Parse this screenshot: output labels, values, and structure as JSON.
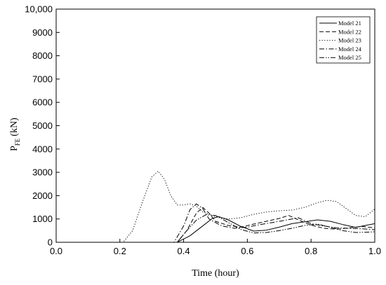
{
  "chart_data": {
    "type": "line",
    "title": "",
    "xlabel": "Time (hour)",
    "ylabel_main": "P",
    "ylabel_sub": "FE",
    "ylabel_unit": "(kN)",
    "xlim": [
      0.0,
      1.0
    ],
    "ylim": [
      0,
      10000
    ],
    "xticks": [
      0.0,
      0.2,
      0.4,
      0.6,
      0.8,
      1.0
    ],
    "xtick_labels": [
      "0.0",
      "0.2",
      "0.4",
      "0.6",
      "0.8",
      "1.0"
    ],
    "yticks": [
      0,
      1000,
      2000,
      3000,
      4000,
      5000,
      6000,
      7000,
      8000,
      9000,
      10000
    ],
    "ytick_labels": [
      "0",
      "1000",
      "2000",
      "3000",
      "4000",
      "5000",
      "6000",
      "7000",
      "8000",
      "9000",
      "10,000"
    ],
    "grid": false,
    "legend_position": "top-right",
    "series": [
      {
        "name": "Model 21",
        "dash": "solid",
        "x": [
          0.0,
          0.38,
          0.42,
          0.46,
          0.49,
          0.51,
          0.54,
          0.58,
          0.62,
          0.66,
          0.7,
          0.74,
          0.78,
          0.82,
          0.86,
          0.9,
          0.94,
          0.97,
          1.0
        ],
        "y": [
          0,
          0,
          280,
          700,
          1020,
          1100,
          960,
          680,
          480,
          520,
          650,
          800,
          880,
          960,
          900,
          760,
          640,
          720,
          800
        ]
      },
      {
        "name": "Model 22",
        "dash": "dashed",
        "x": [
          0.0,
          0.38,
          0.41,
          0.44,
          0.46,
          0.48,
          0.5,
          0.54,
          0.58,
          0.62,
          0.66,
          0.7,
          0.73,
          0.76,
          0.8,
          0.84,
          0.88,
          0.92,
          0.96,
          1.0
        ],
        "y": [
          0,
          0,
          500,
          1250,
          1500,
          1250,
          900,
          720,
          650,
          780,
          900,
          1020,
          1150,
          960,
          740,
          600,
          560,
          620,
          680,
          620
        ]
      },
      {
        "name": "Model 23",
        "dash": "dotted",
        "x": [
          0.0,
          0.21,
          0.24,
          0.27,
          0.3,
          0.32,
          0.34,
          0.36,
          0.38,
          0.4,
          0.42,
          0.44,
          0.46,
          0.5,
          0.54,
          0.58,
          0.62,
          0.66,
          0.7,
          0.74,
          0.78,
          0.82,
          0.85,
          0.88,
          0.91,
          0.94,
          0.97,
          1.0
        ],
        "y": [
          0,
          0,
          500,
          1700,
          2800,
          3050,
          2700,
          2000,
          1600,
          1600,
          1650,
          1550,
          1300,
          1100,
          1000,
          1050,
          1200,
          1300,
          1350,
          1380,
          1500,
          1700,
          1800,
          1750,
          1450,
          1150,
          1100,
          1420
        ]
      },
      {
        "name": "Model 24",
        "dash": "dashdot",
        "x": [
          0.0,
          0.37,
          0.4,
          0.42,
          0.44,
          0.46,
          0.48,
          0.52,
          0.56,
          0.6,
          0.64,
          0.68,
          0.72,
          0.76,
          0.8,
          0.84,
          0.88,
          0.92,
          0.96,
          1.0
        ],
        "y": [
          0,
          0,
          700,
          1400,
          1650,
          1450,
          1000,
          700,
          600,
          650,
          760,
          850,
          950,
          1050,
          800,
          700,
          620,
          600,
          580,
          540
        ]
      },
      {
        "name": "Model 25",
        "dash": "dashdotdot",
        "x": [
          0.0,
          0.38,
          0.41,
          0.44,
          0.47,
          0.5,
          0.54,
          0.58,
          0.62,
          0.66,
          0.7,
          0.74,
          0.78,
          0.82,
          0.86,
          0.9,
          0.94,
          0.97,
          1.0
        ],
        "y": [
          0,
          0,
          500,
          950,
          1180,
          1150,
          850,
          550,
          400,
          420,
          500,
          600,
          720,
          780,
          650,
          500,
          420,
          430,
          450
        ]
      }
    ]
  }
}
